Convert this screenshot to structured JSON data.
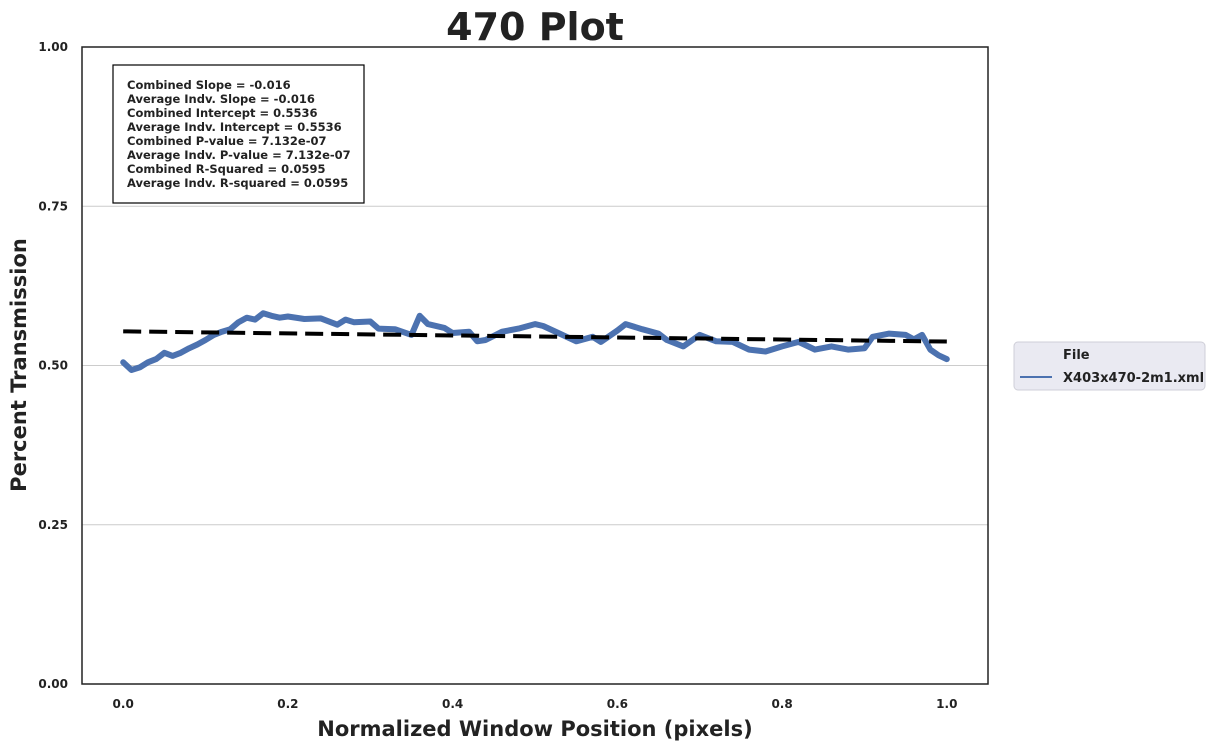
{
  "chart_data": {
    "type": "line",
    "title": "470 Plot",
    "xlabel": "Normalized Window Position (pixels)",
    "ylabel": "Percent Transmission",
    "xlim": [
      -0.05,
      1.05
    ],
    "ylim": [
      0.0,
      1.0
    ],
    "x_ticks": [
      "0.0",
      "0.2",
      "0.4",
      "0.6",
      "0.8",
      "1.0"
    ],
    "y_ticks": [
      "0.00",
      "0.25",
      "0.50",
      "0.75",
      "1.00"
    ],
    "grid": "horizontal",
    "legend": {
      "placement": "outside-right",
      "title": "File",
      "entries": [
        "X403x470-2m1.xml"
      ]
    },
    "stats_box": [
      "Combined Slope = -0.016",
      "Average Indv. Slope = -0.016",
      "Combined Intercept = 0.5536",
      "Average Indv. Intercept = 0.5536",
      "Combined P-value = 7.132e-07",
      "Average Indv. P-value = 7.132e-07",
      "Combined R-Squared = 0.0595",
      "Average Indv. R-squared = 0.0595"
    ],
    "series": [
      {
        "name": "X403x470-2m1.xml",
        "color": "#4c72b0",
        "x": [
          0.0,
          0.01,
          0.02,
          0.03,
          0.04,
          0.05,
          0.06,
          0.07,
          0.08,
          0.09,
          0.1,
          0.11,
          0.12,
          0.13,
          0.14,
          0.15,
          0.16,
          0.17,
          0.18,
          0.19,
          0.2,
          0.22,
          0.24,
          0.26,
          0.27,
          0.28,
          0.3,
          0.31,
          0.33,
          0.35,
          0.36,
          0.37,
          0.39,
          0.4,
          0.42,
          0.43,
          0.44,
          0.46,
          0.48,
          0.5,
          0.51,
          0.53,
          0.55,
          0.57,
          0.58,
          0.6,
          0.61,
          0.63,
          0.65,
          0.66,
          0.68,
          0.7,
          0.72,
          0.74,
          0.76,
          0.78,
          0.8,
          0.82,
          0.84,
          0.86,
          0.88,
          0.9,
          0.91,
          0.93,
          0.95,
          0.96,
          0.97,
          0.98,
          0.99,
          1.0
        ],
        "y": [
          0.505,
          0.493,
          0.497,
          0.505,
          0.51,
          0.52,
          0.515,
          0.52,
          0.527,
          0.533,
          0.54,
          0.548,
          0.553,
          0.557,
          0.568,
          0.575,
          0.572,
          0.582,
          0.578,
          0.575,
          0.577,
          0.573,
          0.574,
          0.564,
          0.572,
          0.568,
          0.569,
          0.558,
          0.557,
          0.548,
          0.578,
          0.565,
          0.559,
          0.551,
          0.553,
          0.538,
          0.54,
          0.553,
          0.558,
          0.565,
          0.562,
          0.55,
          0.538,
          0.545,
          0.537,
          0.555,
          0.565,
          0.557,
          0.55,
          0.54,
          0.53,
          0.548,
          0.538,
          0.537,
          0.525,
          0.522,
          0.53,
          0.537,
          0.525,
          0.53,
          0.525,
          0.527,
          0.545,
          0.55,
          0.548,
          0.541,
          0.548,
          0.525,
          0.516,
          0.51
        ]
      }
    ],
    "fit_line": {
      "x": [
        0.0,
        1.0
      ],
      "y": [
        0.5536,
        0.5376
      ],
      "style": "dashed",
      "color": "#000000"
    }
  }
}
